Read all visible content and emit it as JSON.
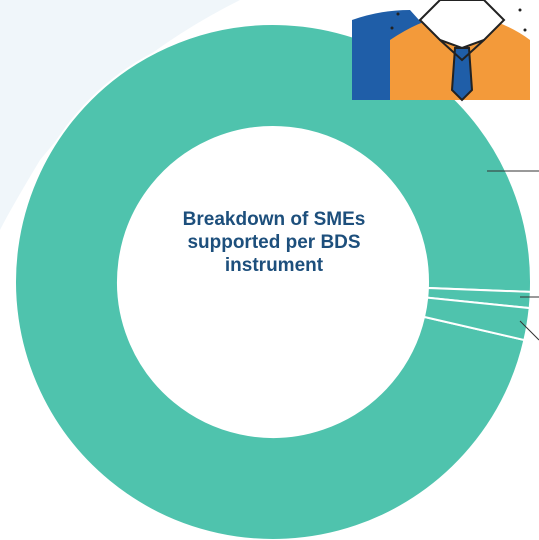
{
  "chart_data": {
    "type": "donut",
    "title": "Breakdown of SMEs supported per BDS instrument",
    "values": [
      97,
      1,
      2
    ],
    "color": "#4fc3ad"
  }
}
